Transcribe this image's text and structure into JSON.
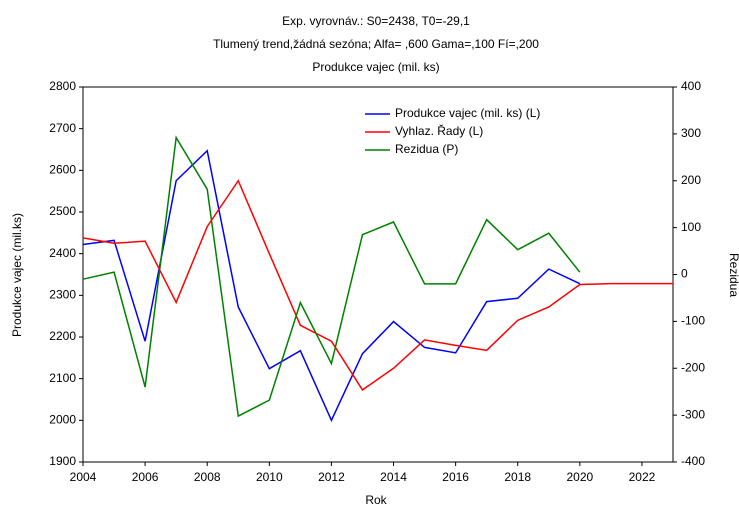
{
  "chart_data": {
    "type": "line",
    "title": "Exp. vyrovnáv.:  S0=2438, T0=-29,1",
    "subtitle": "Tlumený trend,žádná sezóna; Alfa=  ,600 Gama=,100 Fí=,200",
    "subtitle2": "Produkce vajec (mil. ks)",
    "xlabel": "Rok",
    "ylabel": "Produkce vajec (mil.ks)",
    "y2label": "Rezidua",
    "x": [
      2004,
      2005,
      2006,
      2007,
      2008,
      2009,
      2010,
      2011,
      2012,
      2013,
      2014,
      2015,
      2016,
      2017,
      2018,
      2019,
      2020,
      2021,
      2022,
      2023
    ],
    "xlim": [
      2004,
      2023
    ],
    "xticks": [
      2004,
      2006,
      2008,
      2010,
      2012,
      2014,
      2016,
      2018,
      2020,
      2022
    ],
    "ylim": [
      1900,
      2800
    ],
    "yticks": [
      1900,
      2000,
      2100,
      2200,
      2300,
      2400,
      2500,
      2600,
      2700,
      2800
    ],
    "y2lim": [
      -400,
      400
    ],
    "y2ticks": [
      -400,
      -300,
      -200,
      -100,
      0,
      100,
      200,
      300,
      400
    ],
    "grid": false,
    "legend": "top",
    "series": [
      {
        "name": "Produkce vajec (mil. ks) (L)",
        "color": "#0000ff",
        "values": [
          2422,
          2432,
          2190,
          2575,
          2647,
          2272,
          2124,
          2167,
          2000,
          2160,
          2237,
          2175,
          2162,
          2285,
          2293,
          2363,
          2328,
          null,
          null,
          null
        ]
      },
      {
        "name": "Vyhlaz. Řady (L)",
        "color": "#ff0000",
        "values": [
          2438,
          2425,
          2430,
          2283,
          2465,
          2575,
          2400,
          2228,
          2190,
          2073,
          2125,
          2193,
          2180,
          2168,
          2240,
          2272,
          2326,
          2328,
          2328,
          2328
        ]
      },
      {
        "name": "Rezidua (P)",
        "color": "#008000",
        "axis": "y2",
        "values": [
          -10,
          5,
          -240,
          292,
          182,
          -302,
          -268,
          -60,
          -190,
          85,
          112,
          -20,
          -20,
          117,
          53,
          88,
          5,
          null,
          null,
          null
        ]
      }
    ]
  }
}
